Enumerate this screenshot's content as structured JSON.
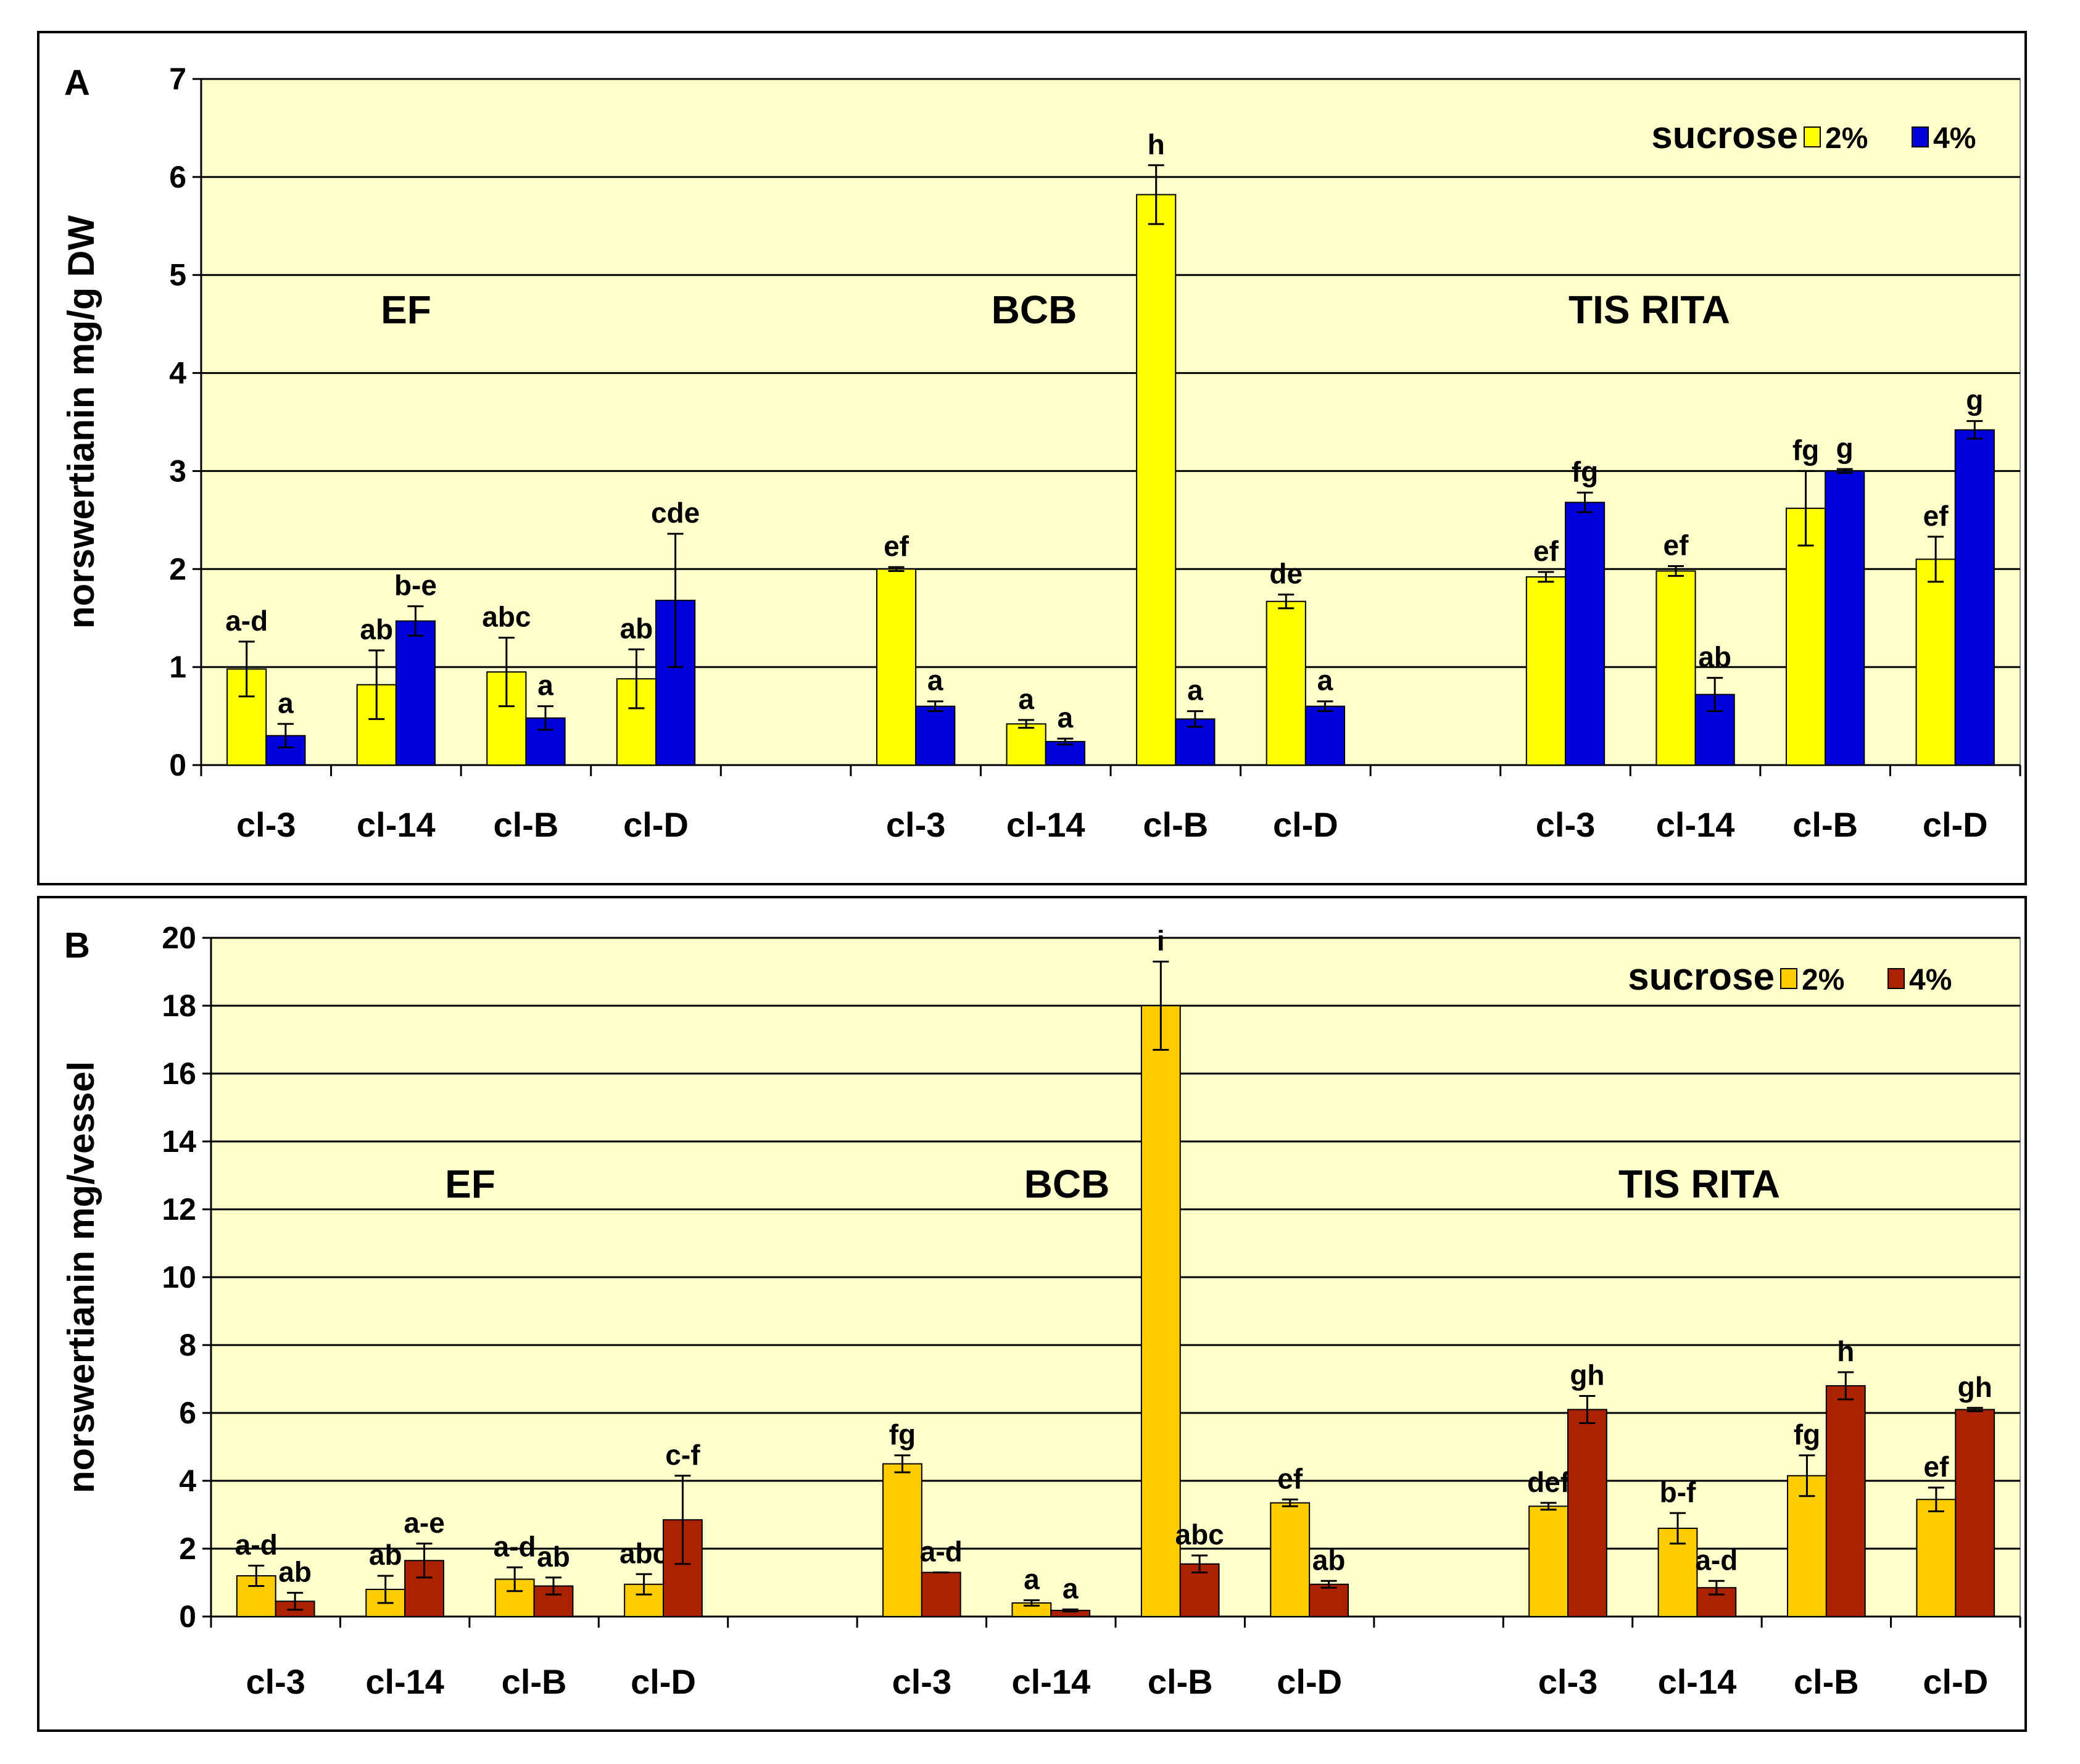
{
  "chart_data": [
    {
      "type": "bar",
      "panel_label": "A",
      "ylabel": "norswertianin mg/g DW",
      "ylim": [
        0,
        7
      ],
      "yticks": [
        "0",
        "1",
        "2",
        "3",
        "4",
        "5",
        "6",
        "7"
      ],
      "grid": true,
      "legend": {
        "title": "sucrose",
        "entries": [
          "2%",
          "4%"
        ],
        "position": "top-right"
      },
      "colors": {
        "s2": "#FFFF00",
        "s4": "#0000DD",
        "background": "#FFFFCC"
      },
      "groups": [
        {
          "name": "EF",
          "categories": [
            "cl-3",
            "cl-14",
            "cl-B",
            "cl-D"
          ],
          "s2": [
            0.98,
            0.82,
            0.95,
            0.88
          ],
          "s2_err": [
            0.28,
            0.35,
            0.35,
            0.3
          ],
          "s2_letters": [
            "a-d",
            "ab",
            "abc",
            "ab"
          ],
          "s4": [
            0.3,
            1.47,
            0.48,
            1.68
          ],
          "s4_err": [
            0.12,
            0.15,
            0.12,
            0.68
          ],
          "s4_letters": [
            "a",
            "b-e",
            "a",
            "cde"
          ]
        },
        {
          "name": "BCB",
          "categories": [
            "cl-3",
            "cl-14",
            "cl-B",
            "cl-D"
          ],
          "s2": [
            2.0,
            0.42,
            5.82,
            1.67
          ],
          "s2_err": [
            0.02,
            0.04,
            0.3,
            0.07
          ],
          "s2_letters": [
            "ef",
            "a",
            "h",
            "de"
          ],
          "s4": [
            0.6,
            0.24,
            0.47,
            0.6
          ],
          "s4_err": [
            0.05,
            0.03,
            0.08,
            0.05
          ],
          "s4_letters": [
            "a",
            "a",
            "a",
            "a"
          ]
        },
        {
          "name": "TIS RITA",
          "categories": [
            "cl-3",
            "cl-14",
            "cl-B",
            "cl-D"
          ],
          "s2": [
            1.92,
            1.98,
            2.62,
            2.1
          ],
          "s2_err": [
            0.05,
            0.05,
            0.38,
            0.23
          ],
          "s2_letters": [
            "ef",
            "ef",
            "fg",
            "ef"
          ],
          "s4": [
            2.68,
            0.72,
            3.0,
            3.42
          ],
          "s4_err": [
            0.1,
            0.17,
            0.02,
            0.09
          ],
          "s4_letters": [
            "fg",
            "ab",
            "g",
            "g"
          ]
        }
      ]
    },
    {
      "type": "bar",
      "panel_label": "B",
      "ylabel": "norswertianin mg/vessel",
      "ylim": [
        0,
        20
      ],
      "yticks": [
        "0",
        "2",
        "4",
        "6",
        "8",
        "10",
        "12",
        "14",
        "16",
        "18",
        "20"
      ],
      "grid": true,
      "legend": {
        "title": "sucrose",
        "entries": [
          "2%",
          "4%"
        ],
        "position": "top-right"
      },
      "colors": {
        "s2": "#FFCC00",
        "s4": "#AA2200",
        "background": "#FFFFCC"
      },
      "groups": [
        {
          "name": "EF",
          "categories": [
            "cl-3",
            "cl-14",
            "cl-B",
            "cl-D"
          ],
          "s2": [
            1.2,
            0.8,
            1.1,
            0.95
          ],
          "s2_err": [
            0.3,
            0.4,
            0.35,
            0.3
          ],
          "s2_letters": [
            "a-d",
            "ab",
            "a-d",
            "abc"
          ],
          "s4": [
            0.45,
            1.65,
            0.9,
            2.85
          ],
          "s4_err": [
            0.25,
            0.5,
            0.25,
            1.3
          ],
          "s4_letters": [
            "ab",
            "a-e",
            "ab",
            "c-f"
          ]
        },
        {
          "name": "BCB",
          "categories": [
            "cl-3",
            "cl-14",
            "cl-B",
            "cl-D"
          ],
          "s2": [
            4.5,
            0.4,
            18.0,
            3.35
          ],
          "s2_err": [
            0.25,
            0.08,
            1.3,
            0.1
          ],
          "s2_letters": [
            "fg",
            "a",
            "i",
            "ef"
          ],
          "s4": [
            1.3,
            0.18,
            1.55,
            0.95
          ],
          "s4_err": [
            0.0,
            0.03,
            0.25,
            0.1
          ],
          "s4_letters": [
            "a-d",
            "a",
            "abc",
            "ab"
          ]
        },
        {
          "name": "TIS RITA",
          "categories": [
            "cl-3",
            "cl-14",
            "cl-B",
            "cl-D"
          ],
          "s2": [
            3.25,
            2.6,
            4.15,
            3.45
          ],
          "s2_err": [
            0.1,
            0.45,
            0.6,
            0.35
          ],
          "s2_letters": [
            "def",
            "b-f",
            "fg",
            "ef"
          ],
          "s4": [
            6.1,
            0.85,
            6.8,
            6.1
          ],
          "s4_err": [
            0.4,
            0.2,
            0.4,
            0.05
          ],
          "s4_letters": [
            "gh",
            "a-d",
            "h",
            "gh"
          ]
        }
      ]
    }
  ]
}
